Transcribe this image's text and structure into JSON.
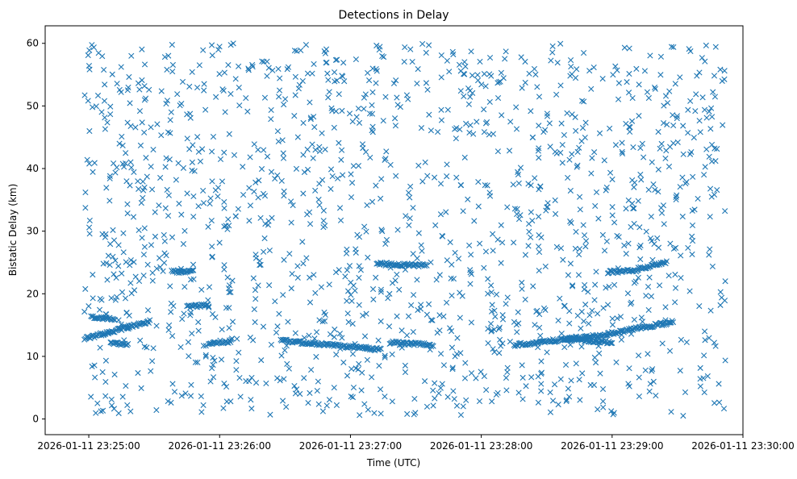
{
  "chart_data": {
    "type": "scatter",
    "title": "Detections in Delay",
    "xlabel": "Time (UTC)",
    "ylabel": "Bistatic Delay (km)",
    "x_ticks": [
      "2026-01-11 23:25:00",
      "2026-01-11 23:26:00",
      "2026-01-11 23:27:00",
      "2026-01-11 23:28:00",
      "2026-01-11 23:29:00",
      "2026-01-11 23:30:00"
    ],
    "y_ticks": [
      "0",
      "10",
      "20",
      "30",
      "40",
      "50",
      "60"
    ],
    "xlim": [
      "2026-01-11 23:24:40",
      "2026-01-11 23:30:00"
    ],
    "ylim": [
      -2.5,
      62.8
    ],
    "data_span": [
      "2026-01-11 23:24:58",
      "2026-01-11 23:29:52"
    ],
    "marker": "x",
    "color": "#1f77b4",
    "grid": false,
    "series": [
      {
        "description_values": "tracks",
        "tracks": [
          {
            "x_start": "2026-01-11 23:24:58",
            "x_end": "2026-01-11 23:25:28",
            "y_start": 12.8,
            "y_end": 15.6
          },
          {
            "x_start": "2026-01-11 23:25:01",
            "x_end": "2026-01-11 23:25:12",
            "y_start": 16.2,
            "y_end": 16.0
          },
          {
            "x_start": "2026-01-11 23:25:10",
            "x_end": "2026-01-11 23:25:18",
            "y_start": 12.0,
            "y_end": 12.0
          },
          {
            "x_start": "2026-01-11 23:25:55",
            "x_end": "2026-01-11 23:26:05",
            "y_start": 12.2,
            "y_end": 12.4
          },
          {
            "x_start": "2026-01-11 23:25:38",
            "x_end": "2026-01-11 23:25:48",
            "y_start": 23.5,
            "y_end": 23.6
          },
          {
            "x_start": "2026-01-11 23:25:45",
            "x_end": "2026-01-11 23:25:55",
            "y_start": 17.9,
            "y_end": 18.2
          },
          {
            "x_start": "2026-01-11 23:26:28",
            "x_end": "2026-01-11 23:27:14",
            "y_start": 12.5,
            "y_end": 11.1
          },
          {
            "x_start": "2026-01-11 23:27:12",
            "x_end": "2026-01-11 23:27:35",
            "y_start": 24.8,
            "y_end": 24.5
          },
          {
            "x_start": "2026-01-11 23:27:18",
            "x_end": "2026-01-11 23:27:38",
            "y_start": 12.2,
            "y_end": 11.8
          },
          {
            "x_start": "2026-01-11 23:28:15",
            "x_end": "2026-01-11 23:28:58",
            "y_start": 11.8,
            "y_end": 13.5
          },
          {
            "x_start": "2026-01-11 23:28:38",
            "x_end": "2026-01-11 23:29:00",
            "y_start": 12.8,
            "y_end": 12.2
          },
          {
            "x_start": "2026-01-11 23:28:58",
            "x_end": "2026-01-11 23:29:28",
            "y_start": 13.6,
            "y_end": 15.5
          },
          {
            "x_start": "2026-01-11 23:28:58",
            "x_end": "2026-01-11 23:29:12",
            "y_start": 23.5,
            "y_end": 23.7
          },
          {
            "x_start": "2026-01-11 23:29:12",
            "x_end": "2026-01-11 23:29:25",
            "y_start": 24.0,
            "y_end": 25.0
          }
        ]
      }
    ]
  }
}
